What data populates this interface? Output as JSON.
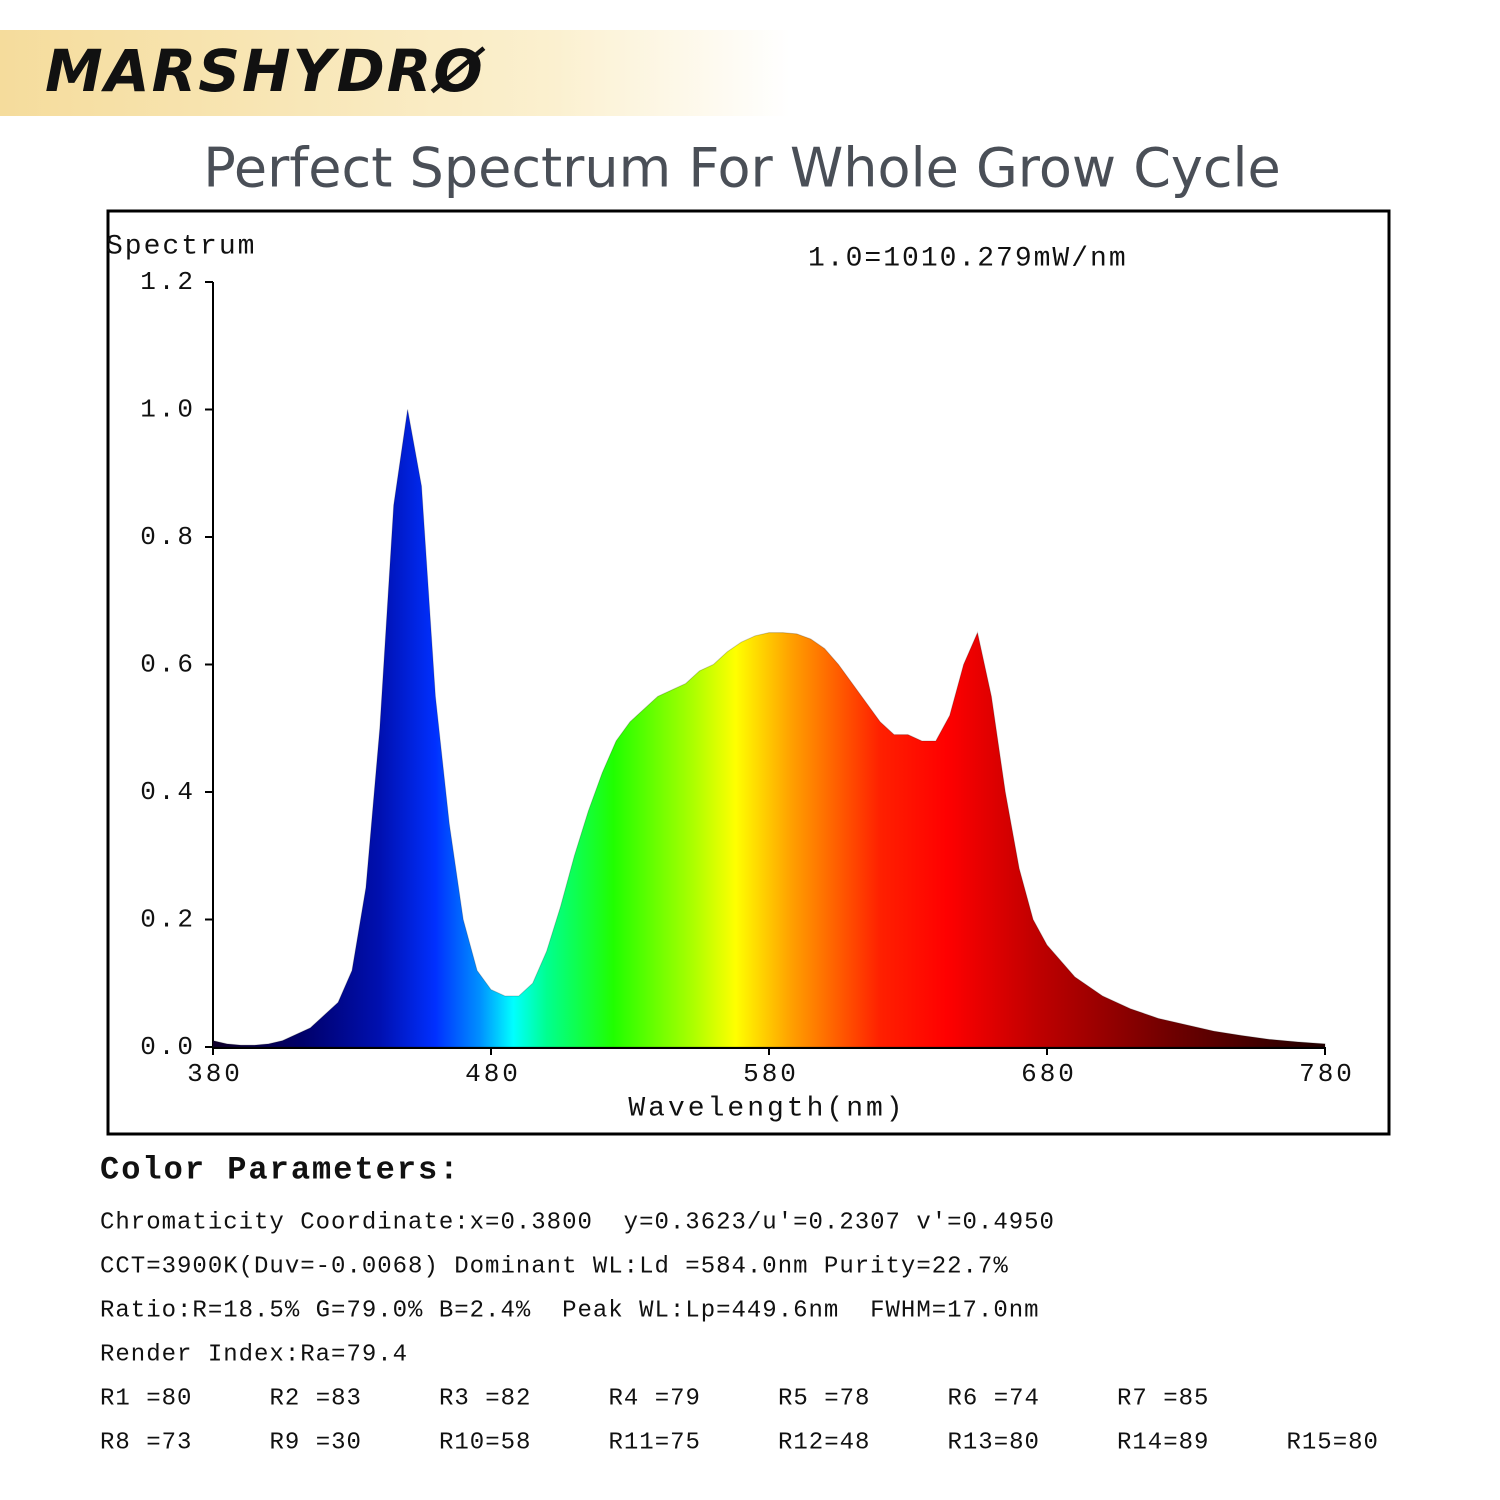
{
  "brand": "MARSHYDRØ",
  "headline": "Perfect Spectrum For Whole Grow Cycle",
  "chart_data": {
    "type": "area",
    "y_label": "Spectrum",
    "annotation": "1.0=1010.279mW/nm",
    "x_label": "Wavelength(nm)",
    "x": [
      380,
      385,
      390,
      395,
      400,
      405,
      410,
      415,
      420,
      425,
      430,
      435,
      440,
      445,
      450,
      455,
      460,
      465,
      470,
      475,
      480,
      485,
      490,
      495,
      500,
      505,
      510,
      515,
      520,
      525,
      530,
      535,
      540,
      545,
      550,
      555,
      560,
      565,
      570,
      575,
      580,
      585,
      590,
      595,
      600,
      605,
      610,
      615,
      620,
      625,
      630,
      635,
      640,
      645,
      650,
      655,
      660,
      665,
      670,
      675,
      680,
      690,
      700,
      710,
      720,
      730,
      740,
      750,
      760,
      770,
      780
    ],
    "values": [
      0.01,
      0.005,
      0.003,
      0.003,
      0.005,
      0.01,
      0.02,
      0.03,
      0.05,
      0.07,
      0.12,
      0.25,
      0.5,
      0.85,
      1.0,
      0.88,
      0.55,
      0.35,
      0.2,
      0.12,
      0.09,
      0.08,
      0.08,
      0.1,
      0.15,
      0.22,
      0.3,
      0.37,
      0.43,
      0.48,
      0.51,
      0.53,
      0.55,
      0.56,
      0.57,
      0.59,
      0.6,
      0.62,
      0.635,
      0.645,
      0.65,
      0.65,
      0.648,
      0.64,
      0.625,
      0.6,
      0.57,
      0.54,
      0.51,
      0.49,
      0.49,
      0.48,
      0.48,
      0.52,
      0.6,
      0.65,
      0.55,
      0.4,
      0.28,
      0.2,
      0.16,
      0.11,
      0.08,
      0.06,
      0.045,
      0.035,
      0.025,
      0.018,
      0.012,
      0.008,
      0.005
    ],
    "xlim": [
      380,
      780
    ],
    "ylim": [
      0,
      1.2
    ],
    "xticks": [
      380,
      480,
      580,
      680,
      780
    ],
    "yticks": [
      {
        "value": 0,
        "label": "0.0"
      },
      {
        "value": 0.2,
        "label": "0.2"
      },
      {
        "value": 0.4,
        "label": "0.4"
      },
      {
        "value": 0.6,
        "label": "0.6"
      },
      {
        "value": 0.8,
        "label": "0.8"
      },
      {
        "value": 1.0,
        "label": "1.0"
      },
      {
        "value": 1.2,
        "label": "1.2"
      }
    ],
    "grid": false
  },
  "parameters": {
    "title": "Color Parameters:",
    "lines": [
      "Chromaticity Coordinate:x=0.3800  y=0.3623/u'=0.2307 v'=0.4950",
      "CCT=3900K(Duv=-0.0068) Dominant WL:Ld =584.0nm Purity=22.7%",
      "Ratio:R=18.5% G=79.0% B=2.4%  Peak WL:Lp=449.6nm  FWHM=17.0nm",
      "Render Index:Ra=79.4"
    ],
    "render_indices": [
      [
        "R1 =80",
        "R2 =83",
        "R3 =82",
        "R4 =79",
        "R5 =78",
        "R6 =74",
        "R7 =85"
      ],
      [
        "R8 =73",
        "R9 =30",
        "R10=58",
        "R11=75",
        "R12=48",
        "R13=80",
        "R14=89",
        "R15=80"
      ]
    ]
  }
}
